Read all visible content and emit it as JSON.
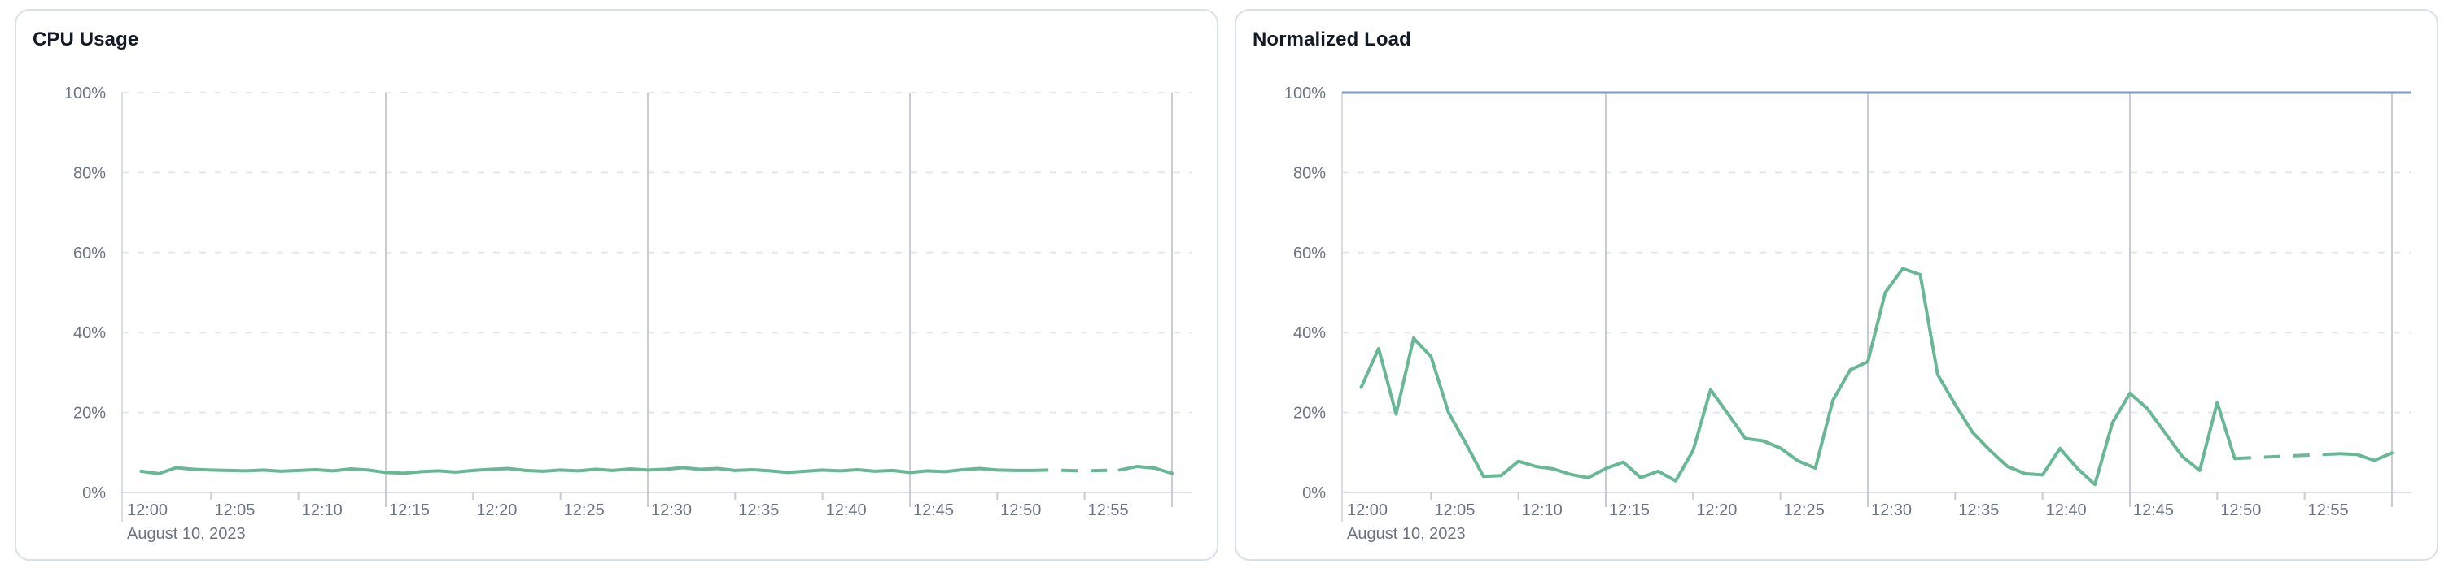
{
  "theme": {
    "background": "#ffffff",
    "panel_background": "#ffffff",
    "panel_border": "#dadfe8",
    "title_color": "#131a26",
    "axis_label_color": "#6b7383",
    "grid_dash_color": "#e4e7ef",
    "grid_major_color": "#c9ccd2",
    "axis_line_color": "#dadde4",
    "series_green": "#68b795",
    "series_blue": "#7e9ac6"
  },
  "chart_data": [
    {
      "type": "line",
      "title": "CPU Usage",
      "xlabel_date": "August 10, 2023",
      "x_start": "12:00",
      "x_end": "13:00",
      "xtick_minutes": [
        0,
        5,
        10,
        15,
        20,
        25,
        30,
        35,
        40,
        45,
        50,
        55
      ],
      "xtick_labels": [
        "12:00",
        "12:05",
        "12:10",
        "12:15",
        "12:20",
        "12:25",
        "12:30",
        "12:35",
        "12:40",
        "12:45",
        "12:50",
        "12:55"
      ],
      "ylim": [
        0,
        100
      ],
      "yticks": [
        0,
        20,
        40,
        60,
        80,
        100
      ],
      "ytick_labels": [
        "0%",
        "20%",
        "40%",
        "60%",
        "80%",
        "100%"
      ],
      "grid": {
        "h_dashed_levels": [
          20,
          40,
          60,
          80,
          100
        ],
        "v_major_minutes": [
          15,
          30,
          45,
          60
        ],
        "minor_tick_minutes": [
          5,
          10,
          20,
          25,
          35,
          40,
          50,
          55
        ]
      },
      "series": [
        {
          "name": "cpu-usage",
          "color": "#68b795",
          "start_minute": 1,
          "step_minutes": 1,
          "dashed_from_minute": 52,
          "dashed_to_minute": 57,
          "values": [
            5.3,
            4.7,
            6.2,
            5.8,
            5.6,
            5.5,
            5.4,
            5.6,
            5.3,
            5.5,
            5.7,
            5.4,
            5.9,
            5.6,
            5.0,
            4.8,
            5.2,
            5.4,
            5.1,
            5.5,
            5.8,
            6.0,
            5.5,
            5.3,
            5.6,
            5.4,
            5.8,
            5.5,
            5.9,
            5.6,
            5.8,
            6.2,
            5.8,
            6.0,
            5.5,
            5.7,
            5.4,
            5.0,
            5.3,
            5.6,
            5.4,
            5.7,
            5.3,
            5.5,
            5.0,
            5.4,
            5.2,
            5.7,
            6.0,
            5.6,
            5.5,
            5.5,
            5.6,
            5.5,
            5.4,
            5.5,
            5.6,
            6.5,
            6.1,
            4.8
          ]
        }
      ]
    },
    {
      "type": "line",
      "title": "Normalized Load",
      "xlabel_date": "August 10, 2023",
      "x_start": "12:00",
      "x_end": "13:00",
      "xtick_minutes": [
        0,
        5,
        10,
        15,
        20,
        25,
        30,
        35,
        40,
        45,
        50,
        55
      ],
      "xtick_labels": [
        "12:00",
        "12:05",
        "12:10",
        "12:15",
        "12:20",
        "12:25",
        "12:30",
        "12:35",
        "12:40",
        "12:45",
        "12:50",
        "12:55"
      ],
      "ylim": [
        0,
        100
      ],
      "yticks": [
        0,
        20,
        40,
        60,
        80,
        100
      ],
      "ytick_labels": [
        "0%",
        "20%",
        "40%",
        "60%",
        "80%",
        "100%"
      ],
      "grid": {
        "h_dashed_levels": [
          20,
          40,
          60,
          80
        ],
        "v_major_minutes": [
          15,
          30,
          45,
          60
        ],
        "minor_tick_minutes": [
          5,
          10,
          20,
          25,
          35,
          40,
          50,
          55
        ]
      },
      "series": [
        {
          "name": "normalized-load",
          "color": "#68b795",
          "start_minute": 1,
          "step_minutes": 1,
          "dashed_from_minute": 51,
          "dashed_to_minute": 57,
          "values": [
            26.3,
            36.0,
            19.6,
            38.6,
            34.0,
            20.0,
            12.2,
            4.0,
            4.2,
            7.8,
            6.5,
            5.9,
            4.5,
            3.7,
            6.0,
            7.6,
            3.7,
            5.3,
            2.9,
            10.5,
            25.7,
            19.6,
            13.5,
            12.9,
            11.1,
            7.9,
            6.1,
            23.0,
            30.7,
            32.7,
            50.0,
            56.0,
            54.5,
            29.5,
            22.0,
            15.0,
            10.5,
            6.5,
            4.7,
            4.4,
            11.0,
            6.0,
            2.0,
            17.4,
            24.8,
            21.0,
            15.0,
            9.0,
            5.5,
            22.5,
            8.5,
            8.7,
            8.9,
            9.1,
            9.3,
            9.5,
            9.7,
            9.5,
            8.0,
            9.9
          ]
        },
        {
          "name": "limit",
          "color": "#7e9ac6",
          "constant": 100
        }
      ]
    }
  ]
}
